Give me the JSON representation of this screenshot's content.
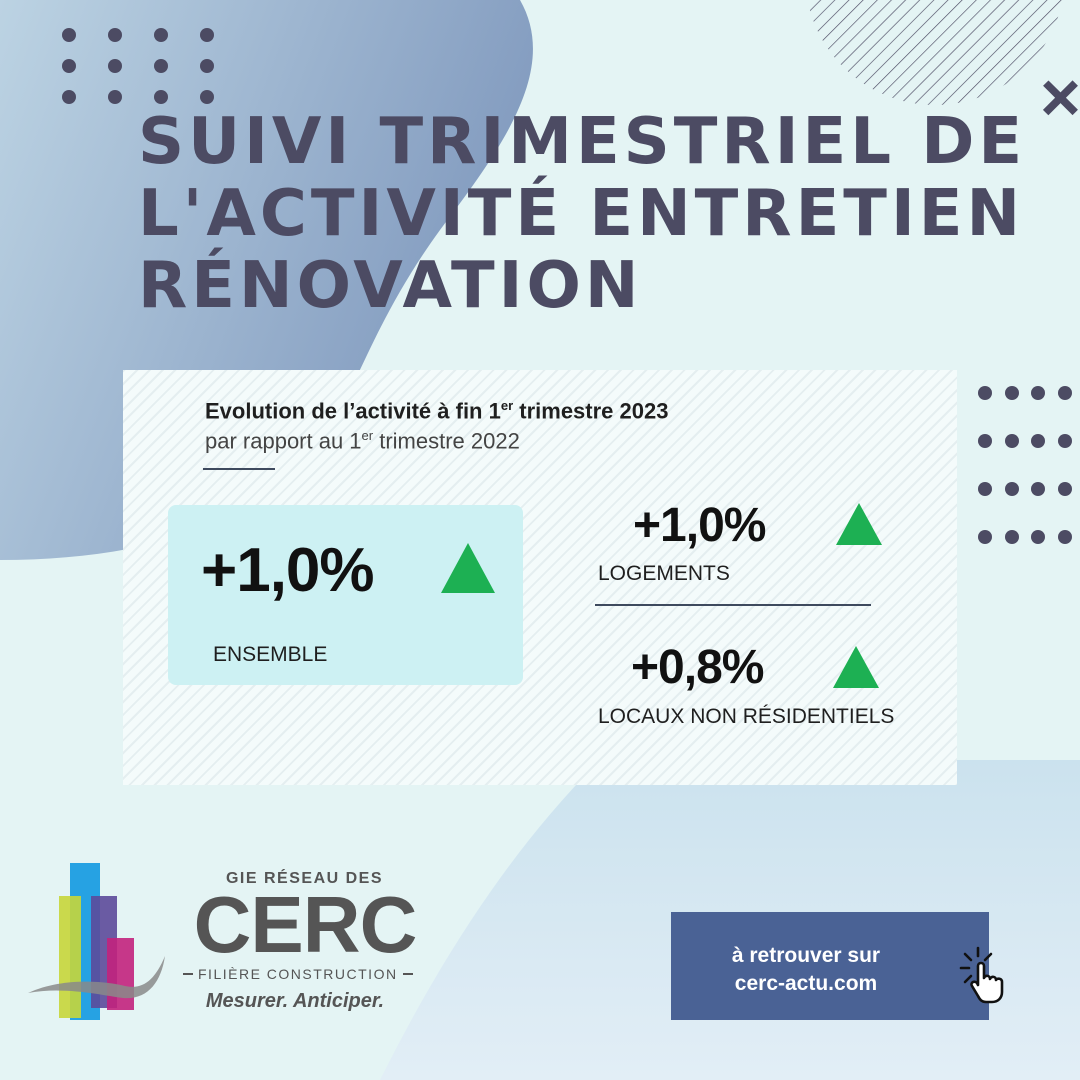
{
  "page": {
    "title": "SUIVI TRIMESTRIEL DE L'ACTIVITÉ ENTRETIEN RÉNOVATION"
  },
  "colors": {
    "title": "#4c4b63",
    "accent_up": "#1db053",
    "button_bg": "#4a6295",
    "highlight_box": "#cdf1f3"
  },
  "icons": [
    "close-icon",
    "up-arrow-icon",
    "hand-cursor-icon"
  ],
  "card": {
    "title_prefix": "Evolution de l’activité à fin 1",
    "title_sup": "er",
    "title_suffix": " trimestre 2023",
    "subtitle_prefix": "par rapport au 1",
    "subtitle_sup": "er",
    "subtitle_suffix": " trimestre 2022",
    "metrics": [
      {
        "value": "+1,0%",
        "label": "ENSEMBLE",
        "trend": "up"
      },
      {
        "value": "+1,0%",
        "label": "LOGEMENTS",
        "trend": "up"
      },
      {
        "value": "+0,8%",
        "label": "LOCAUX NON RÉSIDENTIELS",
        "trend": "up"
      }
    ]
  },
  "logo": {
    "top_text": "GIE RÉSEAU DES",
    "main_text": "CERC",
    "sub_text": "FILIÈRE CONSTRUCTION",
    "tagline": "Mesurer. Anticiper."
  },
  "cta": {
    "line1": "à retrouver sur",
    "line2": "cerc-actu.com"
  }
}
